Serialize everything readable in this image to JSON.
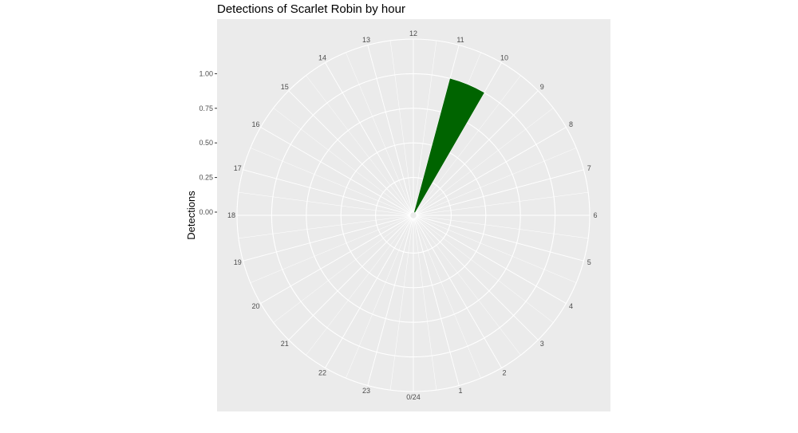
{
  "chart_data": {
    "type": "bar",
    "coord": "polar",
    "title": "Detections of Scarlet Robin by hour",
    "ylabel": "Detections",
    "xlabel": "",
    "y_ticks": [
      "0.00",
      "0.25",
      "0.50",
      "0.75",
      "1.00"
    ],
    "y_tick_values": [
      0,
      0.25,
      0.5,
      0.75,
      1.0
    ],
    "ylim": [
      0,
      1.25
    ],
    "hour_labels": [
      "0/24",
      "1",
      "2",
      "3",
      "4",
      "5",
      "6",
      "7",
      "8",
      "9",
      "10",
      "11",
      "12",
      "13",
      "14",
      "15",
      "16",
      "17",
      "18",
      "19",
      "20",
      "21",
      "22",
      "23"
    ],
    "hours": [
      10.5
    ],
    "values": [
      1
    ],
    "bar_color": "#006400",
    "panel_bg": "#ebebeb",
    "grid_color": "#ffffff"
  }
}
